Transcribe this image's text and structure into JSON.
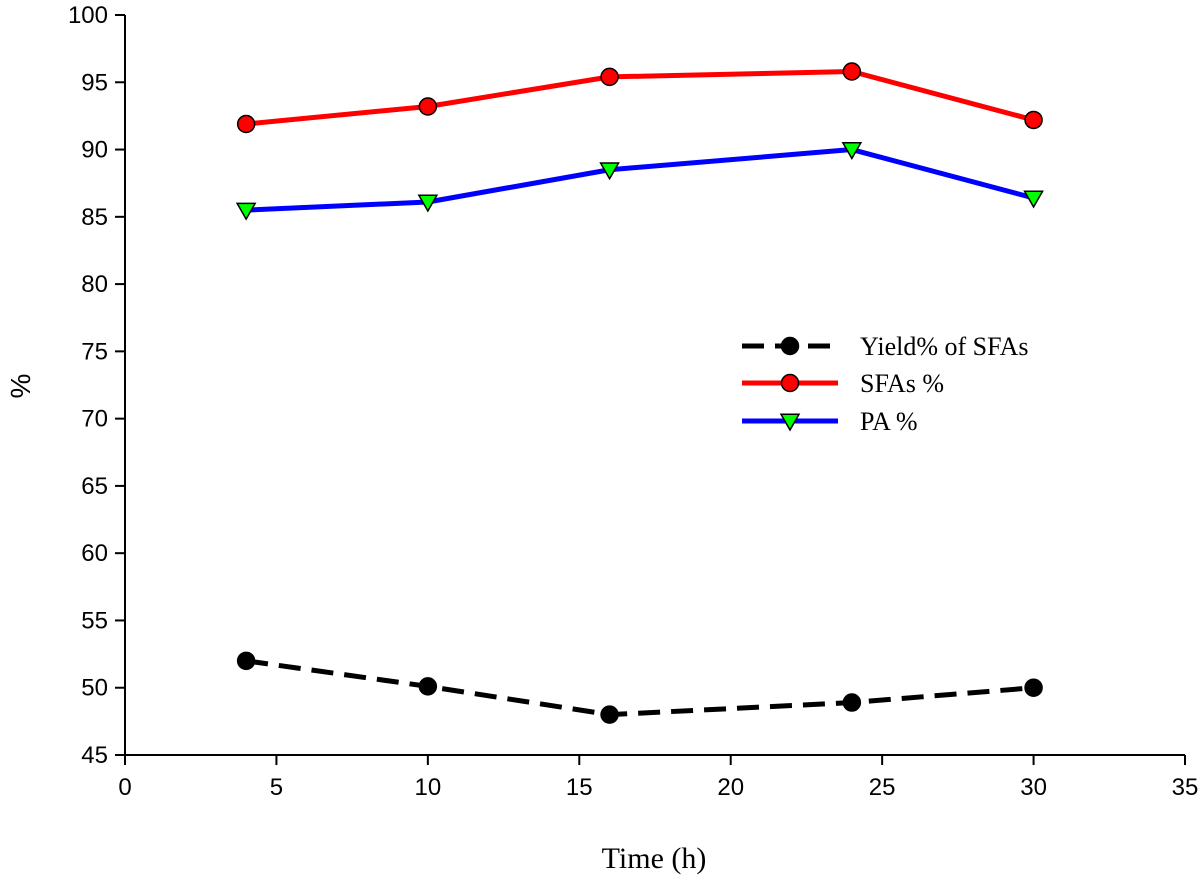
{
  "chart_data": {
    "type": "line",
    "title": "",
    "xlabel": "Time (h)",
    "ylabel": "%",
    "xlim": [
      0,
      35
    ],
    "ylim": [
      45,
      100
    ],
    "xticks": [
      0,
      5,
      10,
      15,
      20,
      25,
      30,
      35
    ],
    "yticks": [
      45,
      50,
      55,
      60,
      65,
      70,
      75,
      80,
      85,
      90,
      95,
      100
    ],
    "x": [
      4,
      10,
      16,
      24,
      30
    ],
    "grid": false,
    "legend_position": "center-right",
    "series": [
      {
        "name": "Yield% of SFAs",
        "values": [
          52.0,
          50.1,
          48.0,
          48.9,
          50.0
        ],
        "line_color": "#000000",
        "marker": "circle",
        "marker_color": "#000000",
        "line_style": "dashed"
      },
      {
        "name": "SFAs %",
        "values": [
          91.9,
          93.2,
          95.4,
          95.8,
          92.2
        ],
        "line_color": "#ff0000",
        "marker": "circle",
        "marker_color": "#ff0000",
        "line_style": "solid"
      },
      {
        "name": "PA %",
        "values": [
          85.5,
          86.1,
          88.5,
          90.0,
          86.4
        ],
        "line_color": "#0000ff",
        "marker": "triangle-down",
        "marker_color": "#00ff00",
        "line_style": "solid"
      }
    ]
  }
}
